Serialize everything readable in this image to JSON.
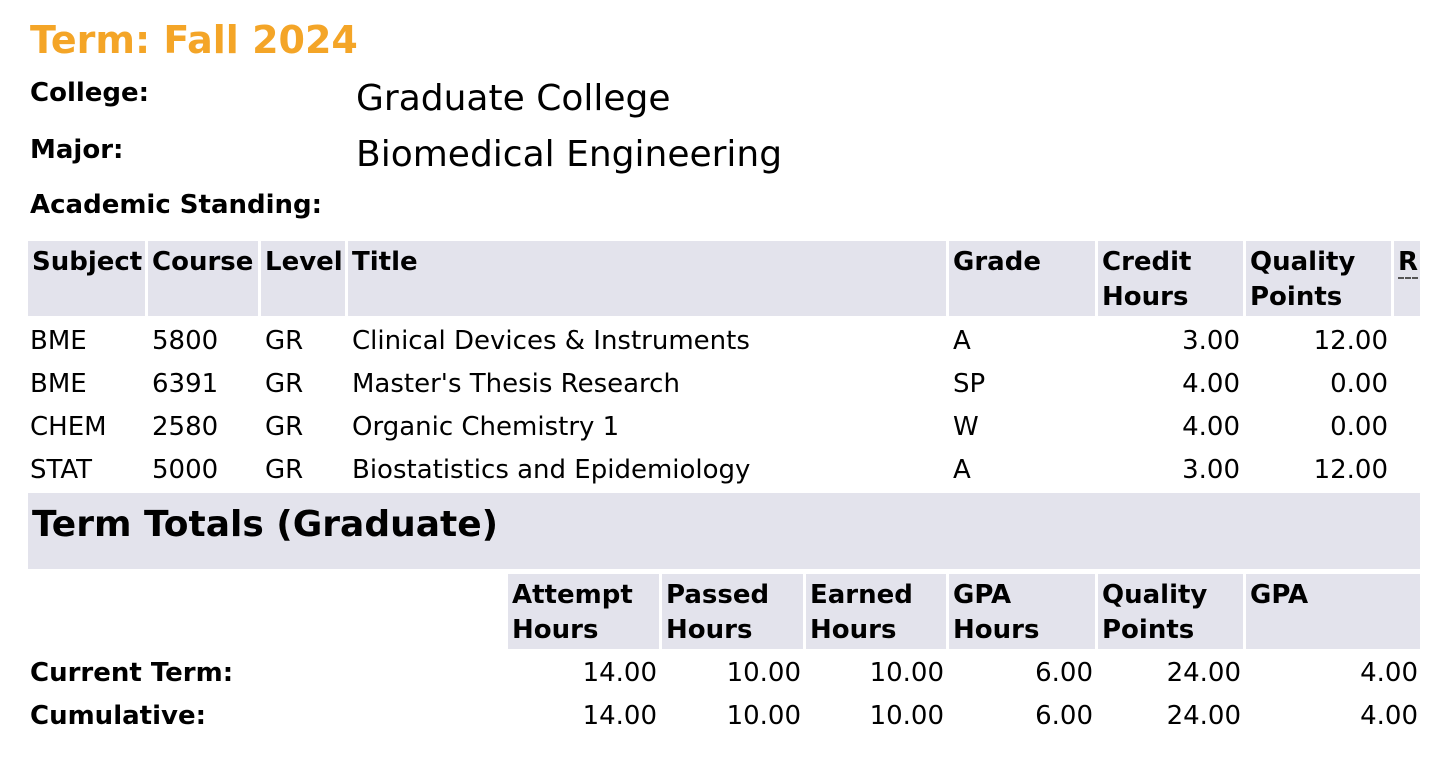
{
  "term": {
    "title": "Term: Fall 2024"
  },
  "info": {
    "college_label": "College:",
    "college_value": "Graduate College",
    "major_label": "Major:",
    "major_value": "Biomedical Engineering",
    "standing_label": "Academic Standing:"
  },
  "courses": {
    "headers": {
      "subject": "Subject",
      "course": "Course",
      "level": "Level",
      "title": "Title",
      "grade": "Grade",
      "credit_1": "Credit",
      "credit_2": "Hours",
      "quality_1": "Quality",
      "quality_2": "Points",
      "r": "R"
    },
    "rows": [
      {
        "subject": "BME",
        "course": "5800",
        "level": "GR",
        "title": "Clinical Devices & Instruments",
        "grade": "A",
        "credit": "3.00",
        "points": "12.00"
      },
      {
        "subject": "BME",
        "course": "6391",
        "level": "GR",
        "title": "Master's Thesis Research",
        "grade": "SP",
        "credit": "4.00",
        "points": "0.00"
      },
      {
        "subject": "CHEM",
        "course": "2580",
        "level": "GR",
        "title": "Organic Chemistry 1",
        "grade": "W",
        "credit": "4.00",
        "points": "0.00"
      },
      {
        "subject": "STAT",
        "course": "5000",
        "level": "GR",
        "title": "Biostatistics and Epidemiology",
        "grade": "A",
        "credit": "3.00",
        "points": "12.00"
      }
    ]
  },
  "totals": {
    "title": "Term Totals (Graduate)",
    "headers": {
      "attempt_1": "Attempt",
      "attempt_2": "Hours",
      "passed_1": "Passed",
      "passed_2": "Hours",
      "earned_1": "Earned",
      "earned_2": "Hours",
      "gpahrs_1": "GPA",
      "gpahrs_2": "Hours",
      "quality_1": "Quality",
      "quality_2": "Points",
      "gpa": "GPA"
    },
    "rows": [
      {
        "label": "Current Term:",
        "attempt": "14.00",
        "passed": "10.00",
        "earned": "10.00",
        "gpa_hours": "6.00",
        "quality": "24.00",
        "gpa": "4.00"
      },
      {
        "label": "Cumulative:",
        "attempt": "14.00",
        "passed": "10.00",
        "earned": "10.00",
        "gpa_hours": "6.00",
        "quality": "24.00",
        "gpa": "4.00"
      }
    ]
  }
}
